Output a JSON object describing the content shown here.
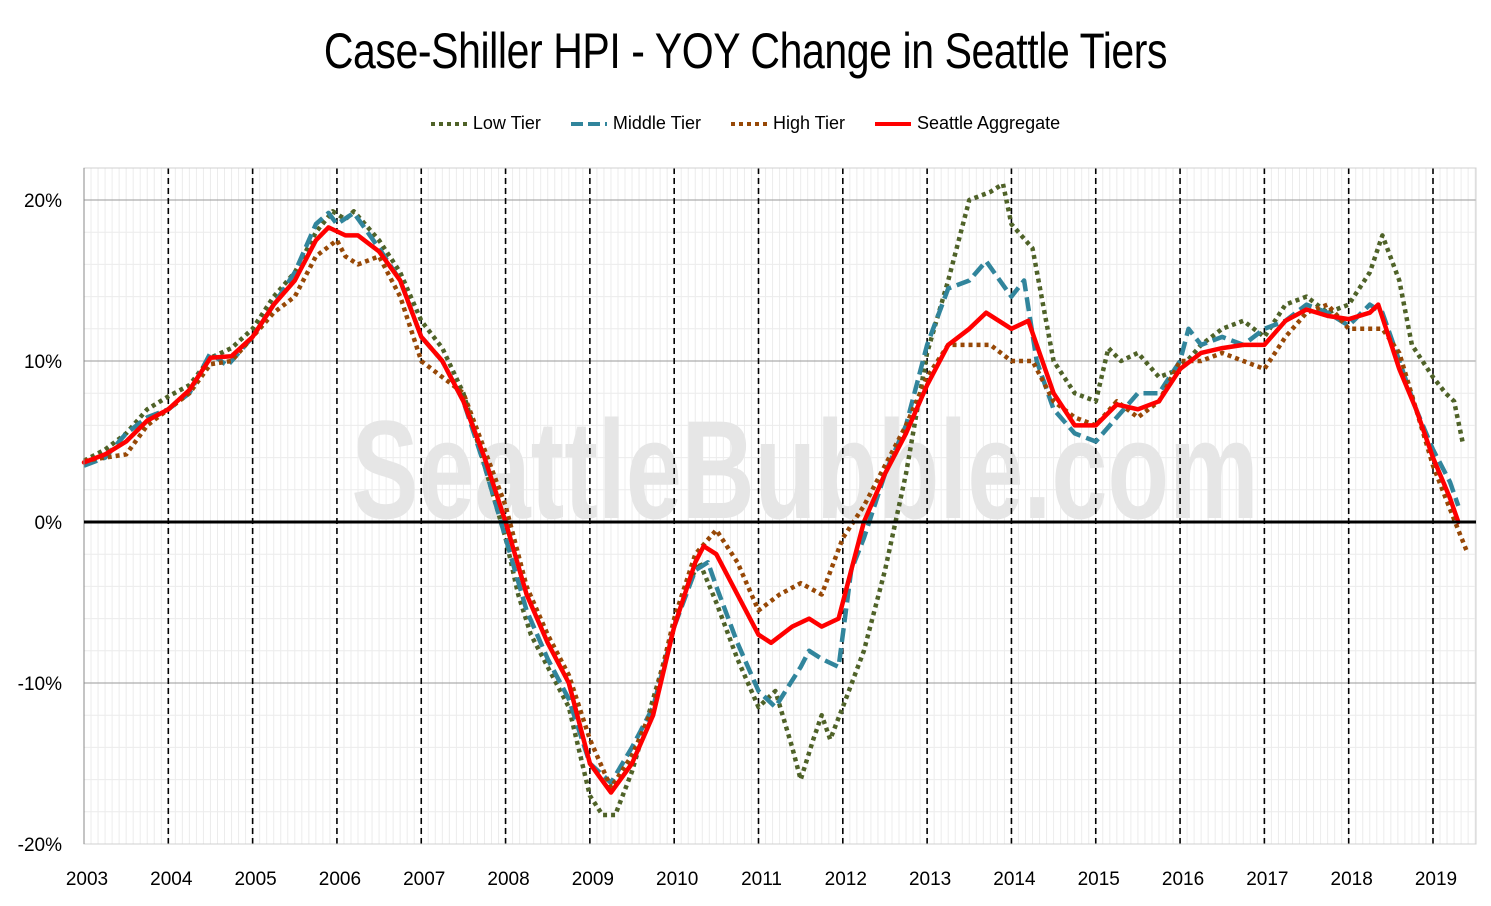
{
  "chart_data": {
    "type": "line",
    "title": "Case-Shiller HPI - YOY Change in Seattle Tiers",
    "watermark": "SeattleBubble.com",
    "xlabel": "",
    "ylabel": "",
    "xlim": [
      2003,
      2019.5
    ],
    "ylim": [
      -20,
      22
    ],
    "x_ticks": [
      "2003",
      "2004",
      "2005",
      "2006",
      "2007",
      "2008",
      "2009",
      "2010",
      "2011",
      "2012",
      "2013",
      "2014",
      "2015",
      "2016",
      "2017",
      "2018",
      "2019"
    ],
    "y_ticks": [
      "20%",
      "10%",
      "0%",
      "-10%",
      "-20%"
    ],
    "y_tick_values": [
      20,
      10,
      0,
      -10,
      -20
    ],
    "grid": true,
    "legend_position": "top-center",
    "series": [
      {
        "name": "Low Tier",
        "color": "#4f6228",
        "style": "dotted",
        "points": [
          [
            2003.0,
            3.8
          ],
          [
            2003.25,
            4.5
          ],
          [
            2003.5,
            5.5
          ],
          [
            2003.75,
            7.0
          ],
          [
            2004.0,
            7.8
          ],
          [
            2004.25,
            8.5
          ],
          [
            2004.5,
            10.2
          ],
          [
            2004.75,
            10.8
          ],
          [
            2005.0,
            12.0
          ],
          [
            2005.25,
            14.0
          ],
          [
            2005.5,
            15.5
          ],
          [
            2005.75,
            18.0
          ],
          [
            2005.95,
            19.3
          ],
          [
            2006.1,
            18.8
          ],
          [
            2006.2,
            19.3
          ],
          [
            2006.5,
            17.5
          ],
          [
            2006.75,
            15.5
          ],
          [
            2007.0,
            12.5
          ],
          [
            2007.25,
            10.8
          ],
          [
            2007.5,
            8.0
          ],
          [
            2007.75,
            3.5
          ],
          [
            2008.0,
            -1.0
          ],
          [
            2008.15,
            -4.5
          ],
          [
            2008.3,
            -7.0
          ],
          [
            2008.5,
            -9.0
          ],
          [
            2008.75,
            -11.5
          ],
          [
            2009.0,
            -17.0
          ],
          [
            2009.15,
            -18.2
          ],
          [
            2009.3,
            -18.2
          ],
          [
            2009.5,
            -15.5
          ],
          [
            2009.75,
            -11.0
          ],
          [
            2010.0,
            -6.5
          ],
          [
            2010.15,
            -4.0
          ],
          [
            2010.3,
            -2.5
          ],
          [
            2010.5,
            -5.0
          ],
          [
            2010.75,
            -8.5
          ],
          [
            2011.0,
            -11.5
          ],
          [
            2011.2,
            -10.5
          ],
          [
            2011.4,
            -14.0
          ],
          [
            2011.5,
            -16.0
          ],
          [
            2011.65,
            -13.5
          ],
          [
            2011.75,
            -12.0
          ],
          [
            2011.85,
            -13.5
          ],
          [
            2012.0,
            -11.5
          ],
          [
            2012.25,
            -8.0
          ],
          [
            2012.5,
            -3.0
          ],
          [
            2012.75,
            3.0
          ],
          [
            2013.0,
            10.5
          ],
          [
            2013.25,
            15.0
          ],
          [
            2013.5,
            20.0
          ],
          [
            2013.75,
            20.5
          ],
          [
            2013.9,
            21.0
          ],
          [
            2014.0,
            18.5
          ],
          [
            2014.25,
            17.0
          ],
          [
            2014.5,
            10.0
          ],
          [
            2014.75,
            8.0
          ],
          [
            2015.0,
            7.5
          ],
          [
            2015.15,
            10.8
          ],
          [
            2015.3,
            10.0
          ],
          [
            2015.5,
            10.5
          ],
          [
            2015.75,
            9.0
          ],
          [
            2016.0,
            9.5
          ],
          [
            2016.25,
            11.0
          ],
          [
            2016.5,
            12.0
          ],
          [
            2016.75,
            12.5
          ],
          [
            2017.0,
            11.5
          ],
          [
            2017.25,
            13.5
          ],
          [
            2017.5,
            14.0
          ],
          [
            2017.75,
            13.0
          ],
          [
            2018.0,
            13.5
          ],
          [
            2018.25,
            15.5
          ],
          [
            2018.4,
            17.8
          ],
          [
            2018.6,
            15.0
          ],
          [
            2018.75,
            11.0
          ],
          [
            2019.0,
            9.0
          ],
          [
            2019.15,
            8.0
          ],
          [
            2019.25,
            7.5
          ],
          [
            2019.35,
            5.0
          ]
        ]
      },
      {
        "name": "Middle Tier",
        "color": "#31859c",
        "style": "dashed",
        "points": [
          [
            2003.0,
            3.5
          ],
          [
            2003.25,
            4.0
          ],
          [
            2003.5,
            5.5
          ],
          [
            2003.75,
            6.5
          ],
          [
            2004.0,
            7.0
          ],
          [
            2004.25,
            8.0
          ],
          [
            2004.5,
            10.5
          ],
          [
            2004.7,
            9.7
          ],
          [
            2005.0,
            11.5
          ],
          [
            2005.25,
            13.5
          ],
          [
            2005.5,
            15.5
          ],
          [
            2005.75,
            18.5
          ],
          [
            2005.9,
            19.2
          ],
          [
            2006.0,
            18.5
          ],
          [
            2006.2,
            19.2
          ],
          [
            2006.5,
            17.0
          ],
          [
            2006.75,
            15.0
          ],
          [
            2007.0,
            11.5
          ],
          [
            2007.25,
            10.0
          ],
          [
            2007.5,
            7.5
          ],
          [
            2007.75,
            3.5
          ],
          [
            2008.0,
            -1.0
          ],
          [
            2008.25,
            -5.5
          ],
          [
            2008.5,
            -8.5
          ],
          [
            2008.75,
            -11.0
          ],
          [
            2009.0,
            -15.0
          ],
          [
            2009.25,
            -16.2
          ],
          [
            2009.5,
            -14.0
          ],
          [
            2009.75,
            -11.5
          ],
          [
            2010.0,
            -6.5
          ],
          [
            2010.25,
            -3.0
          ],
          [
            2010.4,
            -2.5
          ],
          [
            2010.5,
            -4.0
          ],
          [
            2010.75,
            -7.5
          ],
          [
            2011.0,
            -10.5
          ],
          [
            2011.2,
            -11.5
          ],
          [
            2011.5,
            -9.0
          ],
          [
            2011.6,
            -8.0
          ],
          [
            2011.75,
            -8.5
          ],
          [
            2011.95,
            -9.0
          ],
          [
            2012.1,
            -3.0
          ],
          [
            2012.25,
            -1.0
          ],
          [
            2012.5,
            3.0
          ],
          [
            2012.75,
            6.0
          ],
          [
            2013.0,
            11.0
          ],
          [
            2013.25,
            14.5
          ],
          [
            2013.5,
            15.0
          ],
          [
            2013.7,
            16.2
          ],
          [
            2014.0,
            14.0
          ],
          [
            2014.15,
            15.0
          ],
          [
            2014.3,
            10.0
          ],
          [
            2014.5,
            7.0
          ],
          [
            2014.75,
            5.5
          ],
          [
            2015.0,
            5.0
          ],
          [
            2015.25,
            6.5
          ],
          [
            2015.5,
            8.0
          ],
          [
            2015.75,
            8.0
          ],
          [
            2016.0,
            10.0
          ],
          [
            2016.1,
            12.0
          ],
          [
            2016.25,
            11.0
          ],
          [
            2016.5,
            11.5
          ],
          [
            2016.75,
            11.0
          ],
          [
            2017.0,
            12.0
          ],
          [
            2017.25,
            12.5
          ],
          [
            2017.5,
            13.5
          ],
          [
            2017.75,
            13.0
          ],
          [
            2018.0,
            12.2
          ],
          [
            2018.25,
            13.5
          ],
          [
            2018.4,
            13.0
          ],
          [
            2018.6,
            10.0
          ],
          [
            2018.8,
            7.0
          ],
          [
            2019.0,
            4.5
          ],
          [
            2019.2,
            2.5
          ],
          [
            2019.3,
            1.0
          ]
        ]
      },
      {
        "name": "High Tier",
        "color": "#974806",
        "style": "dotted",
        "points": [
          [
            2003.0,
            3.8
          ],
          [
            2003.25,
            4.0
          ],
          [
            2003.5,
            4.2
          ],
          [
            2003.75,
            6.0
          ],
          [
            2004.0,
            7.0
          ],
          [
            2004.25,
            8.0
          ],
          [
            2004.5,
            9.8
          ],
          [
            2004.75,
            10.0
          ],
          [
            2005.0,
            11.5
          ],
          [
            2005.25,
            13.0
          ],
          [
            2005.5,
            14.0
          ],
          [
            2005.75,
            16.5
          ],
          [
            2006.0,
            17.5
          ],
          [
            2006.1,
            16.5
          ],
          [
            2006.25,
            16.0
          ],
          [
            2006.5,
            16.5
          ],
          [
            2006.75,
            14.0
          ],
          [
            2007.0,
            10.0
          ],
          [
            2007.25,
            9.0
          ],
          [
            2007.5,
            8.0
          ],
          [
            2007.75,
            4.5
          ],
          [
            2008.0,
            1.0
          ],
          [
            2008.25,
            -4.0
          ],
          [
            2008.5,
            -7.0
          ],
          [
            2008.75,
            -9.5
          ],
          [
            2009.0,
            -13.5
          ],
          [
            2009.25,
            -16.5
          ],
          [
            2009.5,
            -14.5
          ],
          [
            2009.75,
            -11.5
          ],
          [
            2010.0,
            -6.0
          ],
          [
            2010.25,
            -2.0
          ],
          [
            2010.5,
            -0.5
          ],
          [
            2010.75,
            -2.5
          ],
          [
            2011.0,
            -5.5
          ],
          [
            2011.25,
            -4.5
          ],
          [
            2011.5,
            -3.8
          ],
          [
            2011.75,
            -4.5
          ],
          [
            2012.0,
            -1.0
          ],
          [
            2012.25,
            1.0
          ],
          [
            2012.5,
            3.5
          ],
          [
            2012.75,
            6.0
          ],
          [
            2013.0,
            9.0
          ],
          [
            2013.25,
            11.0
          ],
          [
            2013.5,
            11.0
          ],
          [
            2013.75,
            11.0
          ],
          [
            2014.0,
            10.0
          ],
          [
            2014.25,
            10.0
          ],
          [
            2014.5,
            7.5
          ],
          [
            2014.75,
            6.5
          ],
          [
            2015.0,
            6.0
          ],
          [
            2015.25,
            7.5
          ],
          [
            2015.5,
            6.5
          ],
          [
            2015.75,
            7.5
          ],
          [
            2016.0,
            10.0
          ],
          [
            2016.25,
            10.0
          ],
          [
            2016.5,
            10.5
          ],
          [
            2016.75,
            10.0
          ],
          [
            2017.0,
            9.5
          ],
          [
            2017.25,
            11.5
          ],
          [
            2017.5,
            13.0
          ],
          [
            2017.75,
            13.5
          ],
          [
            2018.0,
            12.0
          ],
          [
            2018.25,
            12.0
          ],
          [
            2018.4,
            12.0
          ],
          [
            2018.6,
            10.5
          ],
          [
            2018.8,
            7.0
          ],
          [
            2019.0,
            3.5
          ],
          [
            2019.15,
            1.5
          ],
          [
            2019.3,
            -0.5
          ],
          [
            2019.4,
            -1.8
          ]
        ]
      },
      {
        "name": "Seattle Aggregate",
        "color": "#ff0000",
        "style": "solid",
        "points": [
          [
            2003.0,
            3.7
          ],
          [
            2003.25,
            4.2
          ],
          [
            2003.5,
            5.0
          ],
          [
            2003.75,
            6.3
          ],
          [
            2004.0,
            7.0
          ],
          [
            2004.25,
            8.2
          ],
          [
            2004.5,
            10.2
          ],
          [
            2004.75,
            10.3
          ],
          [
            2005.0,
            11.5
          ],
          [
            2005.25,
            13.5
          ],
          [
            2005.5,
            15.0
          ],
          [
            2005.75,
            17.5
          ],
          [
            2005.9,
            18.3
          ],
          [
            2006.1,
            17.8
          ],
          [
            2006.25,
            17.8
          ],
          [
            2006.5,
            16.8
          ],
          [
            2006.75,
            15.0
          ],
          [
            2007.0,
            11.5
          ],
          [
            2007.25,
            10.0
          ],
          [
            2007.5,
            7.5
          ],
          [
            2007.75,
            4.0
          ],
          [
            2008.0,
            0.0
          ],
          [
            2008.25,
            -4.5
          ],
          [
            2008.5,
            -7.5
          ],
          [
            2008.75,
            -10.0
          ],
          [
            2009.0,
            -15.0
          ],
          [
            2009.25,
            -16.8
          ],
          [
            2009.5,
            -15.0
          ],
          [
            2009.75,
            -12.0
          ],
          [
            2010.0,
            -6.5
          ],
          [
            2010.25,
            -2.5
          ],
          [
            2010.35,
            -1.5
          ],
          [
            2010.5,
            -2.0
          ],
          [
            2010.75,
            -4.5
          ],
          [
            2011.0,
            -7.0
          ],
          [
            2011.15,
            -7.5
          ],
          [
            2011.4,
            -6.5
          ],
          [
            2011.6,
            -6.0
          ],
          [
            2011.75,
            -6.5
          ],
          [
            2011.95,
            -6.0
          ],
          [
            2012.1,
            -3.0
          ],
          [
            2012.25,
            0.0
          ],
          [
            2012.5,
            3.0
          ],
          [
            2012.75,
            5.5
          ],
          [
            2013.0,
            8.5
          ],
          [
            2013.25,
            11.0
          ],
          [
            2013.5,
            12.0
          ],
          [
            2013.7,
            13.0
          ],
          [
            2014.0,
            12.0
          ],
          [
            2014.2,
            12.5
          ],
          [
            2014.3,
            11.0
          ],
          [
            2014.5,
            8.0
          ],
          [
            2014.75,
            6.0
          ],
          [
            2015.0,
            6.0
          ],
          [
            2015.25,
            7.3
          ],
          [
            2015.5,
            7.0
          ],
          [
            2015.75,
            7.5
          ],
          [
            2016.0,
            9.5
          ],
          [
            2016.25,
            10.5
          ],
          [
            2016.5,
            10.8
          ],
          [
            2016.75,
            11.0
          ],
          [
            2017.0,
            11.0
          ],
          [
            2017.25,
            12.5
          ],
          [
            2017.5,
            13.2
          ],
          [
            2017.75,
            12.8
          ],
          [
            2018.0,
            12.6
          ],
          [
            2018.25,
            13.0
          ],
          [
            2018.35,
            13.5
          ],
          [
            2018.6,
            9.5
          ],
          [
            2018.8,
            7.0
          ],
          [
            2019.0,
            4.0
          ],
          [
            2019.2,
            1.5
          ],
          [
            2019.3,
            0.0
          ]
        ]
      }
    ]
  }
}
